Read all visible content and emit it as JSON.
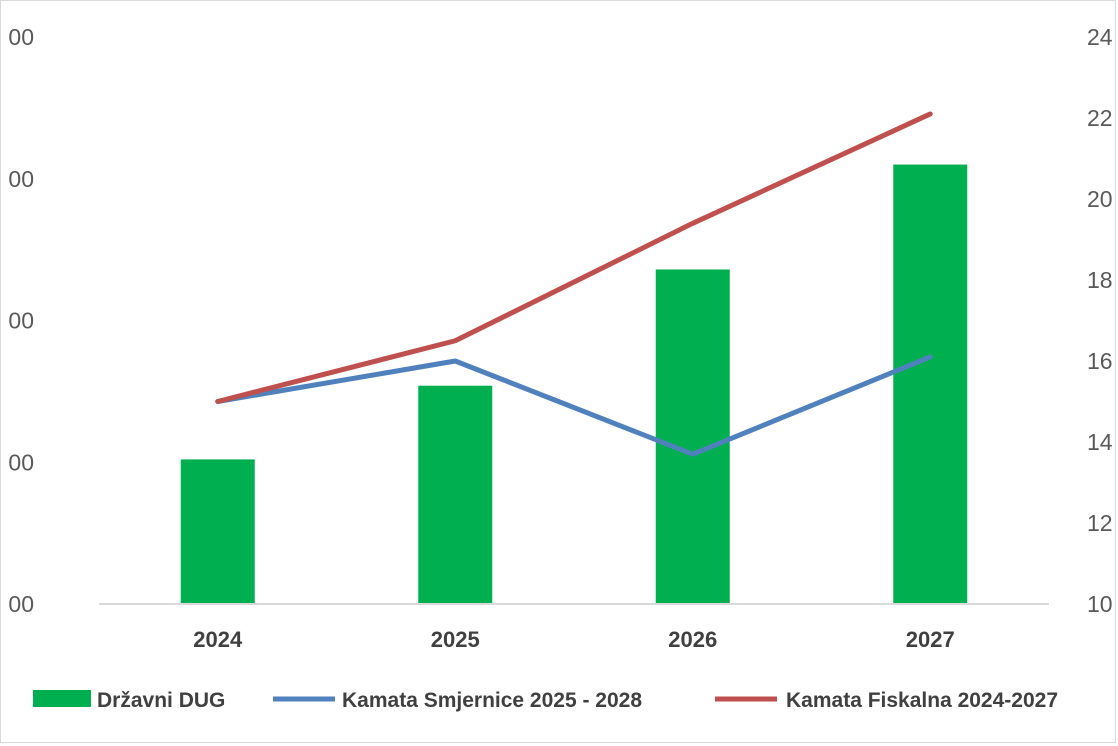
{
  "chart_data": {
    "type": "bar",
    "categories": [
      "2024",
      "2025",
      "2026",
      "2027"
    ],
    "y_left": {
      "ticks": [
        "00",
        "00",
        "00",
        "00",
        "00"
      ],
      "ylim": [
        0,
        4
      ]
    },
    "y_right": {
      "ticks": [
        "10",
        "12",
        "14",
        "16",
        "18",
        "20",
        "22",
        "24"
      ],
      "ylim": [
        10,
        24
      ]
    },
    "series": [
      {
        "name": "Državni DUG",
        "kind": "bar",
        "axis": "left",
        "color": "#00b050",
        "values": [
          1.02,
          1.54,
          2.36,
          3.1
        ]
      },
      {
        "name": "Kamata Smjernice 2025 - 2028",
        "kind": "line",
        "axis": "right",
        "color": "#4f81bd",
        "values": [
          15.0,
          16.0,
          13.7,
          16.1
        ]
      },
      {
        "name": "Kamata Fiskalna 2024-2027",
        "kind": "line",
        "axis": "right",
        "color": "#c0504d",
        "values": [
          15.0,
          16.5,
          19.4,
          22.1
        ]
      }
    ],
    "legend_position": "bottom",
    "grid": false
  }
}
